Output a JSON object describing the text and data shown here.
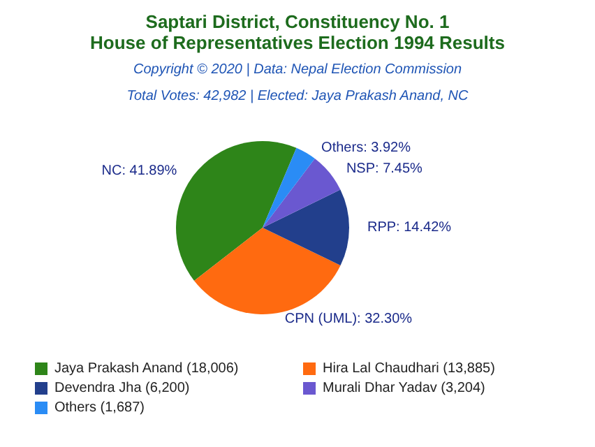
{
  "chart_data": {
    "type": "pie",
    "title": "Saptari District, Constituency No. 1",
    "subtitle": "House of Representatives Election 1994 Results",
    "annotations": [
      "Copyright © 2020 | Data: Nepal Election Commission",
      "Total Votes: 42,982 | Elected: Jaya Prakash Anand, NC"
    ],
    "categories": [
      "Jaya Prakash Anand (18,006)",
      "Hira Lal Chaudhari (13,885)",
      "Devendra Jha (6,200)",
      "Murali Dhar Yadav (3,204)",
      "Others (1,687)"
    ],
    "values": [
      41.89,
      32.3,
      14.42,
      7.45,
      3.92
    ],
    "value_labels": [
      "NC: 41.89%",
      "CPN (UML): 32.30%",
      "RPP: 14.42%",
      "NSP: 7.45%",
      "Others: 3.92%"
    ],
    "colors": [
      "#2e8519",
      "#ff6a10",
      "#223f8c",
      "#6a58d0",
      "#2a8cf5"
    ],
    "legend": "bottom"
  }
}
